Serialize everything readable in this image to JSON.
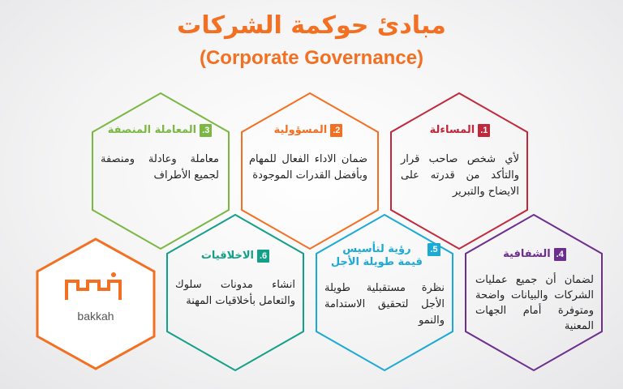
{
  "title_ar": "مبادئ حوكمة الشركات",
  "title_en": "(Corporate Governance)",
  "colors": {
    "accent": "#f36f21",
    "red": "#c0283c",
    "orange": "#f36f21",
    "green": "#7ab843",
    "purple": "#6d2f8f",
    "blue": "#1ba9d6",
    "teal": "#13a088"
  },
  "principles": [
    {
      "number": "1.",
      "title": "المساءلة",
      "body": "لأي شخص صاحب قرار والتأكد من قدرته على الايضاح والتبرير"
    },
    {
      "number": "2.",
      "title": "المسؤولية",
      "body": "ضمان الاداء الفعال للمهام وبأفضل القدرات الموجودة"
    },
    {
      "number": "3.",
      "title": "المعاملة المنصفة",
      "body": "معاملة وعادلة ومنصفة لجميع الأطراف"
    },
    {
      "number": "4.",
      "title": "الشفافية",
      "body": "لضمان أن جميع عمليات الشركات والبيانات واضحة ومتوفرة أمام الجهات المعنية"
    },
    {
      "number": "5.",
      "title": "رؤية لتأسيس قيمة طويلة الأجل",
      "body": "نظرة مستقبلية طويلة الأجل لتحقيق الاستدامة والنمو"
    },
    {
      "number": "6.",
      "title": "الاخلاقيات",
      "body": "انشاء مدونات سلوك والتعامل بأخلاقيات المهنة"
    }
  ],
  "logo": {
    "name": "bakkah",
    "icon": "bakkah-logo-icon"
  }
}
